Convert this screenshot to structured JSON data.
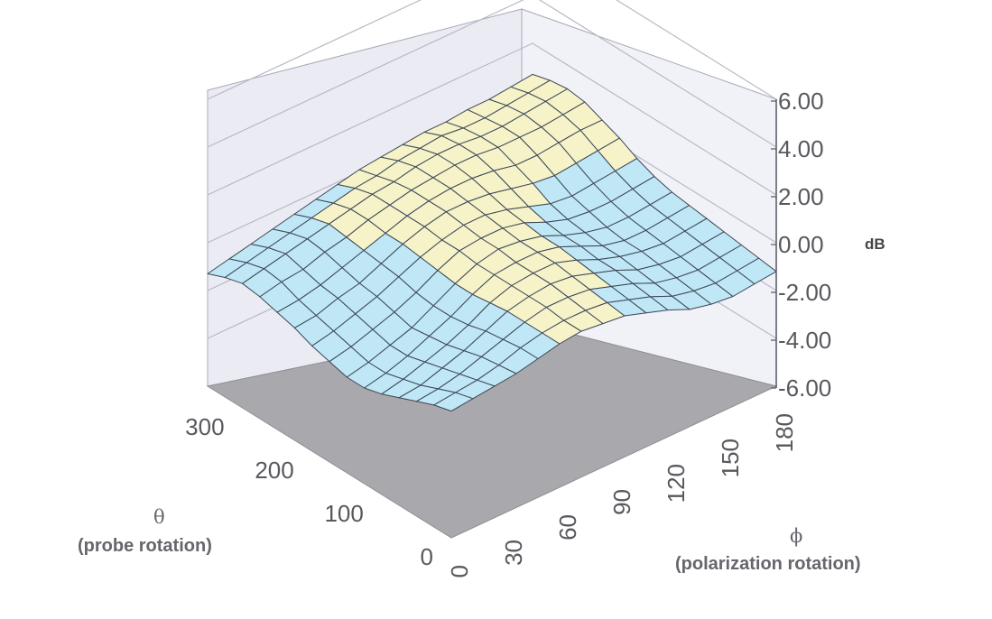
{
  "chart_data": {
    "type": "surface",
    "title": "",
    "z_unit": "dB",
    "z_range": [
      -6,
      6
    ],
    "z_ticks": [
      "6.00",
      "4.00",
      "2.00",
      "0.00",
      "-2.00",
      "-4.00",
      "-6.00"
    ],
    "theta_axis": {
      "symbol": "θ",
      "label": "(probe rotation)",
      "ticks": [
        "0",
        "100",
        "200",
        "300"
      ],
      "range": [
        0,
        350
      ]
    },
    "phi_axis": {
      "symbol": "ϕ",
      "label": "(polarization rotation)",
      "ticks": [
        "0",
        "30",
        "60",
        "90",
        "120",
        "150",
        "180"
      ],
      "range": [
        0,
        180
      ]
    },
    "color_bands": [
      {
        "range": "-2.00 to 0.00",
        "color": "#bfe7f5"
      },
      {
        "range": "0.00 to 2.00",
        "color": "#f6f3c9"
      }
    ],
    "colors": {
      "floor": "#a9a8ac",
      "wall": "#ecedf4",
      "grid": "#b9b9c7",
      "mesh": "#3d4655"
    },
    "surface_db": {
      "rows": "theta = 350, 325, 300, ..., 0 (15 rows)",
      "cols": "phi = 0, 12, 24, ..., 180 (16 cols)",
      "values": [
        [
          -1.3,
          -1.1,
          -0.9,
          -0.7,
          -0.5,
          -0.3,
          -0.1,
          0.1,
          0.2,
          0.3,
          0.4,
          0.4,
          0.5,
          0.5,
          0.6,
          0.7
        ],
        [
          -1.0,
          -0.8,
          -0.6,
          -0.4,
          -0.2,
          0.0,
          0.2,
          0.3,
          0.5,
          0.6,
          0.7,
          0.6,
          0.6,
          0.7,
          0.8,
          0.9
        ],
        [
          -0.8,
          -0.6,
          -0.4,
          -0.2,
          0.0,
          0.2,
          0.4,
          0.5,
          0.7,
          0.8,
          0.8,
          0.7,
          0.7,
          0.8,
          0.9,
          1.0
        ],
        [
          -0.9,
          -0.7,
          -0.6,
          -0.3,
          -0.1,
          0.2,
          0.4,
          0.6,
          0.7,
          0.8,
          0.8,
          0.7,
          0.7,
          0.7,
          0.8,
          0.9
        ],
        [
          -1.1,
          -1.0,
          -0.8,
          -0.5,
          -0.2,
          0.1,
          0.4,
          0.6,
          0.7,
          0.7,
          0.6,
          0.4,
          0.4,
          0.5,
          0.6,
          0.6
        ],
        [
          -1.3,
          -1.2,
          -0.9,
          -0.7,
          -0.3,
          0.1,
          0.4,
          0.6,
          0.6,
          0.5,
          0.3,
          0.1,
          0.0,
          0.1,
          0.2,
          0.3
        ],
        [
          -1.6,
          -1.4,
          -1.1,
          -0.8,
          -0.4,
          0.0,
          0.3,
          0.5,
          0.5,
          0.3,
          0.0,
          -0.3,
          -0.4,
          -0.3,
          -0.2,
          -0.1
        ],
        [
          -1.8,
          -1.6,
          -1.3,
          -1.0,
          -0.6,
          -0.1,
          0.3,
          0.4,
          0.4,
          0.2,
          -0.2,
          -0.5,
          -0.6,
          -0.6,
          -0.5,
          -0.4
        ],
        [
          -2.0,
          -1.8,
          -1.5,
          -1.2,
          -0.7,
          -0.2,
          0.2,
          0.4,
          0.3,
          0.1,
          -0.3,
          -0.6,
          -0.8,
          -0.8,
          -0.7,
          -0.6
        ],
        [
          -2.0,
          -1.8,
          -1.5,
          -1.1,
          -0.7,
          -0.2,
          0.2,
          0.3,
          0.3,
          0.1,
          -0.3,
          -0.7,
          -0.9,
          -0.9,
          -0.8,
          -0.7
        ],
        [
          -1.8,
          -1.6,
          -1.3,
          -1.0,
          -0.6,
          -0.1,
          0.2,
          0.3,
          0.3,
          0.0,
          -0.4,
          -0.7,
          -0.9,
          -1.0,
          -0.9,
          -0.8
        ],
        [
          -1.5,
          -1.4,
          -1.1,
          -0.8,
          -0.4,
          0.0,
          0.2,
          0.3,
          0.2,
          -0.1,
          -0.4,
          -0.8,
          -1.0,
          -1.1,
          -1.0,
          -0.9
        ],
        [
          -1.2,
          -1.1,
          -0.9,
          -0.6,
          -0.3,
          0.0,
          0.2,
          0.2,
          0.1,
          -0.2,
          -0.5,
          -0.9,
          -1.1,
          -1.2,
          -1.1,
          -1.0
        ],
        [
          -0.9,
          -0.8,
          -0.7,
          -0.5,
          -0.2,
          0.0,
          0.1,
          0.1,
          0.0,
          -0.3,
          -0.6,
          -1.0,
          -1.2,
          -1.3,
          -1.2,
          -1.1
        ],
        [
          -0.7,
          -0.6,
          -0.5,
          -0.4,
          -0.2,
          0.0,
          0.1,
          0.0,
          -0.1,
          -0.4,
          -0.7,
          -1.1,
          -1.3,
          -1.4,
          -1.3,
          -1.2
        ]
      ]
    }
  }
}
